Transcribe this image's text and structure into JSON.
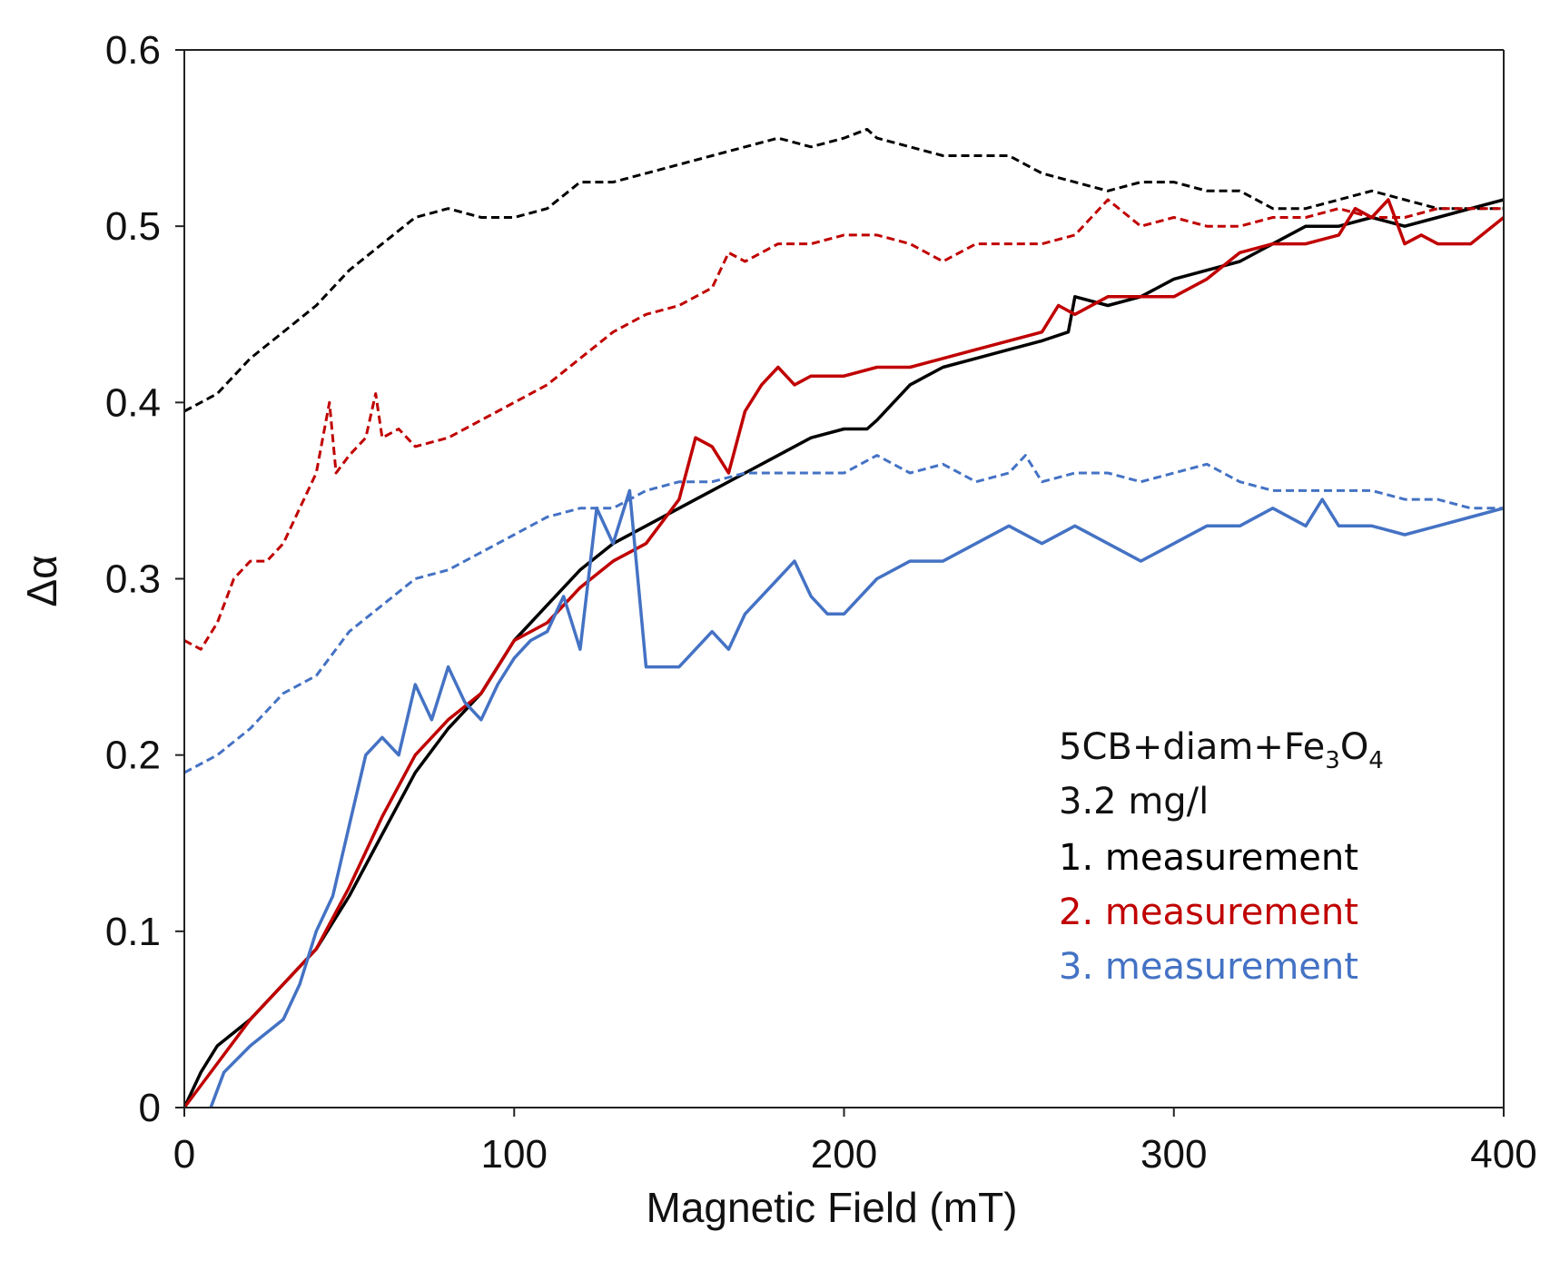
{
  "chart_data": {
    "type": "line",
    "title": "",
    "xlabel": "Magnetic Field (mT)",
    "ylabel": "Δα",
    "xlim": [
      0,
      400
    ],
    "ylim": [
      0,
      0.6
    ],
    "xticks": [
      0,
      100,
      200,
      300,
      400
    ],
    "yticks": [
      0,
      0.1,
      0.2,
      0.3,
      0.4,
      0.5,
      0.6
    ],
    "xtick_labels": [
      "0",
      "100",
      "200",
      "300",
      "400"
    ],
    "ytick_labels": [
      "0",
      "0.1",
      "0.2",
      "0.3",
      "0.4",
      "0.5",
      "0.6"
    ],
    "grid": false,
    "legend_position": "right-center",
    "annotation": {
      "sample_prefix": "5CB+diam+Fe",
      "sub1": "3",
      "mid": "O",
      "sub2": "4",
      "concentration": "3.2 mg/l"
    },
    "legend": [
      {
        "label": "1. measurement",
        "color": "#000000"
      },
      {
        "label": "2. measurement",
        "color": "#C00000"
      },
      {
        "label": "3. measurement",
        "color": "#4472C4"
      }
    ],
    "series": [
      {
        "name": "1. measurement (solid)",
        "color": "#000000",
        "dash": false,
        "x": [
          0,
          5,
          10,
          20,
          30,
          40,
          50,
          60,
          70,
          80,
          90,
          100,
          110,
          120,
          130,
          140,
          150,
          160,
          170,
          180,
          190,
          200,
          207,
          210,
          220,
          230,
          240,
          250,
          260,
          268,
          270,
          280,
          290,
          300,
          310,
          320,
          330,
          340,
          350,
          360,
          370,
          380,
          390,
          400
        ],
        "y": [
          0,
          0.02,
          0.035,
          0.05,
          0.07,
          0.09,
          0.12,
          0.155,
          0.19,
          0.215,
          0.235,
          0.265,
          0.285,
          0.305,
          0.32,
          0.33,
          0.34,
          0.35,
          0.36,
          0.37,
          0.38,
          0.385,
          0.385,
          0.39,
          0.41,
          0.42,
          0.425,
          0.43,
          0.435,
          0.44,
          0.46,
          0.455,
          0.46,
          0.47,
          0.475,
          0.48,
          0.49,
          0.5,
          0.5,
          0.505,
          0.5,
          0.505,
          0.51,
          0.515
        ]
      },
      {
        "name": "1. measurement (dashed)",
        "color": "#000000",
        "dash": true,
        "x": [
          0,
          10,
          20,
          30,
          40,
          50,
          60,
          70,
          80,
          90,
          100,
          110,
          120,
          130,
          140,
          150,
          160,
          170,
          180,
          190,
          200,
          207,
          210,
          220,
          230,
          240,
          250,
          260,
          270,
          280,
          290,
          300,
          310,
          320,
          330,
          340,
          350,
          360,
          370,
          380,
          390,
          400
        ],
        "y": [
          0.395,
          0.405,
          0.425,
          0.44,
          0.455,
          0.475,
          0.49,
          0.505,
          0.51,
          0.505,
          0.505,
          0.51,
          0.525,
          0.525,
          0.53,
          0.535,
          0.54,
          0.545,
          0.55,
          0.545,
          0.55,
          0.555,
          0.55,
          0.545,
          0.54,
          0.54,
          0.54,
          0.53,
          0.525,
          0.52,
          0.525,
          0.525,
          0.52,
          0.52,
          0.51,
          0.51,
          0.515,
          0.52,
          0.515,
          0.51,
          0.51,
          0.51
        ]
      },
      {
        "name": "2. measurement (solid)",
        "color": "#C00000",
        "dash": false,
        "x": [
          0,
          10,
          20,
          30,
          40,
          50,
          60,
          70,
          80,
          90,
          100,
          110,
          120,
          130,
          140,
          150,
          155,
          160,
          165,
          170,
          175,
          180,
          185,
          190,
          200,
          210,
          220,
          230,
          240,
          250,
          260,
          265,
          270,
          280,
          290,
          300,
          310,
          320,
          330,
          340,
          350,
          355,
          360,
          365,
          370,
          375,
          380,
          390,
          400
        ],
        "y": [
          0,
          0.025,
          0.05,
          0.07,
          0.09,
          0.125,
          0.165,
          0.2,
          0.22,
          0.235,
          0.265,
          0.275,
          0.295,
          0.31,
          0.32,
          0.345,
          0.38,
          0.375,
          0.36,
          0.395,
          0.41,
          0.42,
          0.41,
          0.415,
          0.415,
          0.42,
          0.42,
          0.425,
          0.43,
          0.435,
          0.44,
          0.455,
          0.45,
          0.46,
          0.46,
          0.46,
          0.47,
          0.485,
          0.49,
          0.49,
          0.495,
          0.51,
          0.505,
          0.515,
          0.49,
          0.495,
          0.49,
          0.49,
          0.505
        ]
      },
      {
        "name": "2. measurement (dashed)",
        "color": "#C00000",
        "dash": true,
        "x": [
          0,
          5,
          10,
          15,
          20,
          25,
          30,
          35,
          40,
          44,
          46,
          50,
          55,
          58,
          60,
          65,
          70,
          80,
          90,
          100,
          110,
          120,
          130,
          140,
          150,
          160,
          165,
          170,
          180,
          190,
          200,
          210,
          220,
          230,
          240,
          250,
          260,
          270,
          280,
          290,
          300,
          310,
          320,
          330,
          340,
          350,
          360,
          370,
          380,
          390,
          400
        ],
        "y": [
          0.265,
          0.26,
          0.275,
          0.3,
          0.31,
          0.31,
          0.32,
          0.34,
          0.36,
          0.4,
          0.36,
          0.37,
          0.38,
          0.405,
          0.38,
          0.385,
          0.375,
          0.38,
          0.39,
          0.4,
          0.41,
          0.425,
          0.44,
          0.45,
          0.455,
          0.465,
          0.485,
          0.48,
          0.49,
          0.49,
          0.495,
          0.495,
          0.49,
          0.48,
          0.49,
          0.49,
          0.49,
          0.495,
          0.515,
          0.5,
          0.505,
          0.5,
          0.5,
          0.505,
          0.505,
          0.51,
          0.505,
          0.505,
          0.51,
          0.51,
          0.51
        ]
      },
      {
        "name": "3. measurement (solid)",
        "color": "#4472C4",
        "dash": false,
        "x": [
          8,
          12,
          20,
          30,
          35,
          40,
          45,
          50,
          55,
          60,
          65,
          70,
          75,
          80,
          85,
          90,
          95,
          100,
          105,
          110,
          115,
          120,
          125,
          130,
          135,
          140,
          150,
          155,
          160,
          165,
          170,
          180,
          185,
          190,
          195,
          200,
          210,
          220,
          230,
          240,
          250,
          260,
          270,
          280,
          290,
          300,
          310,
          320,
          330,
          340,
          345,
          350,
          360,
          370,
          380,
          390,
          400
        ],
        "y": [
          0,
          0.02,
          0.035,
          0.05,
          0.07,
          0.1,
          0.12,
          0.16,
          0.2,
          0.21,
          0.2,
          0.24,
          0.22,
          0.25,
          0.23,
          0.22,
          0.24,
          0.255,
          0.265,
          0.27,
          0.29,
          0.26,
          0.34,
          0.32,
          0.35,
          0.25,
          0.25,
          0.26,
          0.27,
          0.26,
          0.28,
          0.3,
          0.31,
          0.29,
          0.28,
          0.28,
          0.3,
          0.31,
          0.31,
          0.32,
          0.33,
          0.32,
          0.33,
          0.32,
          0.31,
          0.32,
          0.33,
          0.33,
          0.34,
          0.33,
          0.345,
          0.33,
          0.33,
          0.325,
          0.33,
          0.335,
          0.34
        ]
      },
      {
        "name": "3. measurement (dashed)",
        "color": "#4472C4",
        "dash": true,
        "x": [
          0,
          10,
          20,
          30,
          40,
          50,
          60,
          70,
          80,
          90,
          100,
          110,
          120,
          130,
          140,
          150,
          160,
          170,
          180,
          190,
          200,
          210,
          220,
          230,
          240,
          250,
          255,
          260,
          270,
          280,
          290,
          300,
          310,
          320,
          330,
          340,
          350,
          360,
          370,
          380,
          390,
          400
        ],
        "y": [
          0.19,
          0.2,
          0.215,
          0.235,
          0.245,
          0.27,
          0.285,
          0.3,
          0.305,
          0.315,
          0.325,
          0.335,
          0.34,
          0.34,
          0.35,
          0.355,
          0.355,
          0.36,
          0.36,
          0.36,
          0.36,
          0.37,
          0.36,
          0.365,
          0.355,
          0.36,
          0.37,
          0.355,
          0.36,
          0.36,
          0.355,
          0.36,
          0.365,
          0.355,
          0.35,
          0.35,
          0.35,
          0.35,
          0.345,
          0.345,
          0.34,
          0.34
        ]
      }
    ]
  }
}
